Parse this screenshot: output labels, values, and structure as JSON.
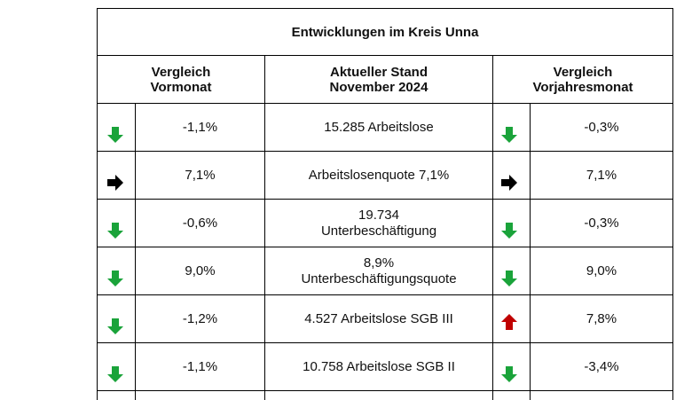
{
  "title": "Entwicklungen im Kreis Unna",
  "headers": {
    "left_line1": "Vergleich",
    "left_line2": "Vormonat",
    "mid_line1": "Aktueller Stand",
    "mid_line2": "November 2024",
    "right_line1": "Vergleich",
    "right_line2": "Vorjahresmonat"
  },
  "rows": [
    {
      "left_icon": "green-down-arrow-icon",
      "left_value": "-1,1%",
      "label_line1": "15.285 Arbeitslose",
      "label_line2": "",
      "right_icon": "green-down-arrow-icon",
      "right_value": "-0,3%"
    },
    {
      "left_icon": "black-right-arrow-icon",
      "left_value": "7,1%",
      "label_line1": "Arbeitslosenquote 7,1%",
      "label_line2": "",
      "right_icon": "black-right-arrow-icon",
      "right_value": "7,1%"
    },
    {
      "left_icon": "green-down-arrow-icon",
      "left_value": "-0,6%",
      "label_line1": "19.734",
      "label_line2": "Unterbeschäftigung",
      "right_icon": "green-down-arrow-icon",
      "right_value": "-0,3%"
    },
    {
      "left_icon": "green-down-arrow-icon",
      "left_value": "9,0%",
      "label_line1": "8,9%",
      "label_line2": "Unterbeschäftigungsquote",
      "right_icon": "green-down-arrow-icon",
      "right_value": "9,0%"
    },
    {
      "left_icon": "green-down-arrow-icon",
      "left_value": "-1,2%",
      "label_line1": "4.527 Arbeitslose SGB III",
      "label_line2": "",
      "right_icon": "red-up-arrow-icon",
      "right_value": "7,8%"
    },
    {
      "left_icon": "green-down-arrow-icon",
      "left_value": "-1,1%",
      "label_line1": "10.758 Arbeitslose SGB II",
      "label_line2": "",
      "right_icon": "green-down-arrow-icon",
      "right_value": "-3,4%"
    }
  ],
  "colors": {
    "green_arrow": "#1aa33a",
    "red_arrow": "#c00000",
    "black_arrow": "#000000",
    "border": "#000000"
  }
}
